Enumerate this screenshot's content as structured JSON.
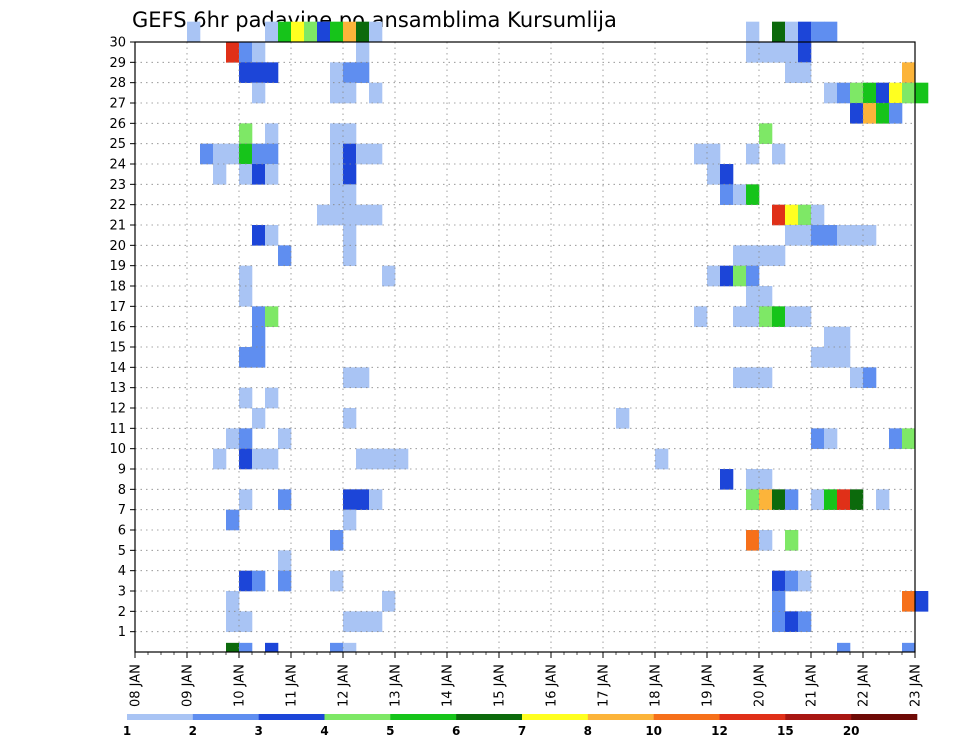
{
  "chart_data": {
    "type": "heatmap",
    "title": "GEFS 6hr padavine po ansamblima Kursumlija",
    "xlabel": "",
    "ylabel": "",
    "x_tick_labels": [
      "08 JAN",
      "09 JAN",
      "10 JAN",
      "11 JAN",
      "12 JAN",
      "13 JAN",
      "14 JAN",
      "15 JAN",
      "16 JAN",
      "17 JAN",
      "18 JAN",
      "19 JAN",
      "20 JAN",
      "21 JAN",
      "22 JAN",
      "23 JAN"
    ],
    "x_range_days": [
      "08 JAN",
      "23 JAN"
    ],
    "y_tick_labels": [
      "1",
      "2",
      "3",
      "4",
      "5",
      "6",
      "7",
      "8",
      "9",
      "10",
      "11",
      "12",
      "13",
      "14",
      "15",
      "16",
      "17",
      "18",
      "19",
      "20",
      "21",
      "22",
      "23",
      "24",
      "25",
      "26",
      "27",
      "28",
      "29",
      "30"
    ],
    "y_range": [
      0,
      30
    ],
    "grid": true,
    "colorbar": {
      "position": "bottom",
      "levels": [
        "1",
        "2",
        "3",
        "4",
        "5",
        "6",
        "7",
        "8",
        "10",
        "12",
        "15",
        "20"
      ],
      "colors": [
        "#a9c4f4",
        "#5f8ef0",
        "#1c45d8",
        "#7ee866",
        "#16c41a",
        "#0c6a0c",
        "#ffff20",
        "#fcb43a",
        "#f6701a",
        "#e03018",
        "#a81612",
        "#6e0a06"
      ]
    },
    "values_description": "columns = 6-hour steps starting 08 JAN 00Z; rows = ensemble member; value = color class index (1..12)",
    "cells": [
      [
        30,
        4,
        1
      ],
      [
        30,
        10,
        1
      ],
      [
        30,
        11,
        5
      ],
      [
        30,
        12,
        7
      ],
      [
        30,
        13,
        4
      ],
      [
        30,
        14,
        3
      ],
      [
        30,
        15,
        5
      ],
      [
        30,
        16,
        8
      ],
      [
        30,
        17,
        6
      ],
      [
        30,
        18,
        1
      ],
      [
        30,
        47,
        1
      ],
      [
        30,
        49,
        6
      ],
      [
        30,
        50,
        1
      ],
      [
        30,
        51,
        3
      ],
      [
        30,
        52,
        2
      ],
      [
        30,
        53,
        2
      ],
      [
        29,
        7,
        10
      ],
      [
        29,
        8,
        2
      ],
      [
        29,
        9,
        1
      ],
      [
        29,
        17,
        1
      ],
      [
        29,
        47,
        1
      ],
      [
        29,
        48,
        1
      ],
      [
        29,
        49,
        1
      ],
      [
        29,
        50,
        1
      ],
      [
        29,
        51,
        3
      ],
      [
        28,
        8,
        3
      ],
      [
        28,
        9,
        3
      ],
      [
        28,
        10,
        3
      ],
      [
        28,
        15,
        1
      ],
      [
        28,
        16,
        2
      ],
      [
        28,
        17,
        2
      ],
      [
        28,
        50,
        1
      ],
      [
        28,
        51,
        1
      ],
      [
        28,
        59,
        8
      ],
      [
        27,
        9,
        1
      ],
      [
        27,
        15,
        1
      ],
      [
        27,
        16,
        1
      ],
      [
        27,
        18,
        1
      ],
      [
        27,
        53,
        1
      ],
      [
        27,
        54,
        2
      ],
      [
        27,
        55,
        4
      ],
      [
        27,
        56,
        5
      ],
      [
        27,
        57,
        3
      ],
      [
        27,
        58,
        7
      ],
      [
        27,
        59,
        4
      ],
      [
        27,
        60,
        5
      ],
      [
        26,
        55,
        3
      ],
      [
        26,
        56,
        8
      ],
      [
        26,
        57,
        5
      ],
      [
        26,
        58,
        2
      ],
      [
        25,
        8,
        4
      ],
      [
        25,
        10,
        1
      ],
      [
        25,
        15,
        1
      ],
      [
        25,
        16,
        1
      ],
      [
        25,
        48,
        4
      ],
      [
        24,
        5,
        2
      ],
      [
        24,
        6,
        1
      ],
      [
        24,
        7,
        1
      ],
      [
        24,
        8,
        5
      ],
      [
        24,
        9,
        2
      ],
      [
        24,
        10,
        2
      ],
      [
        24,
        15,
        1
      ],
      [
        24,
        16,
        3
      ],
      [
        24,
        17,
        1
      ],
      [
        24,
        18,
        1
      ],
      [
        24,
        43,
        1
      ],
      [
        24,
        44,
        1
      ],
      [
        24,
        47,
        1
      ],
      [
        24,
        49,
        1
      ],
      [
        23,
        6,
        1
      ],
      [
        23,
        8,
        1
      ],
      [
        23,
        9,
        3
      ],
      [
        23,
        10,
        1
      ],
      [
        23,
        15,
        1
      ],
      [
        23,
        16,
        3
      ],
      [
        23,
        44,
        1
      ],
      [
        23,
        45,
        3
      ],
      [
        22,
        15,
        1
      ],
      [
        22,
        16,
        1
      ],
      [
        22,
        45,
        2
      ],
      [
        22,
        46,
        1
      ],
      [
        22,
        47,
        5
      ],
      [
        21,
        14,
        1
      ],
      [
        21,
        15,
        1
      ],
      [
        21,
        16,
        1
      ],
      [
        21,
        17,
        1
      ],
      [
        21,
        18,
        1
      ],
      [
        21,
        49,
        10
      ],
      [
        21,
        50,
        7
      ],
      [
        21,
        51,
        4
      ],
      [
        21,
        52,
        1
      ],
      [
        20,
        9,
        3
      ],
      [
        20,
        10,
        1
      ],
      [
        20,
        16,
        1
      ],
      [
        20,
        50,
        1
      ],
      [
        20,
        51,
        1
      ],
      [
        20,
        52,
        2
      ],
      [
        20,
        53,
        2
      ],
      [
        20,
        54,
        1
      ],
      [
        20,
        55,
        1
      ],
      [
        20,
        56,
        1
      ],
      [
        19,
        11,
        2
      ],
      [
        19,
        16,
        1
      ],
      [
        19,
        46,
        1
      ],
      [
        19,
        47,
        1
      ],
      [
        19,
        48,
        1
      ],
      [
        19,
        49,
        1
      ],
      [
        18,
        8,
        1
      ],
      [
        18,
        19,
        1
      ],
      [
        18,
        44,
        1
      ],
      [
        18,
        45,
        3
      ],
      [
        18,
        46,
        4
      ],
      [
        18,
        47,
        2
      ],
      [
        17,
        8,
        1
      ],
      [
        17,
        47,
        1
      ],
      [
        17,
        48,
        1
      ],
      [
        16,
        9,
        2
      ],
      [
        16,
        10,
        4
      ],
      [
        16,
        43,
        1
      ],
      [
        16,
        46,
        1
      ],
      [
        16,
        47,
        1
      ],
      [
        16,
        48,
        4
      ],
      [
        16,
        49,
        5
      ],
      [
        16,
        50,
        1
      ],
      [
        16,
        51,
        1
      ],
      [
        15,
        9,
        2
      ],
      [
        15,
        53,
        1
      ],
      [
        15,
        54,
        1
      ],
      [
        14,
        8,
        2
      ],
      [
        14,
        9,
        2
      ],
      [
        14,
        52,
        1
      ],
      [
        14,
        53,
        1
      ],
      [
        14,
        54,
        1
      ],
      [
        13,
        16,
        1
      ],
      [
        13,
        17,
        1
      ],
      [
        13,
        46,
        1
      ],
      [
        13,
        47,
        1
      ],
      [
        13,
        48,
        1
      ],
      [
        13,
        55,
        1
      ],
      [
        13,
        56,
        2
      ],
      [
        12,
        8,
        1
      ],
      [
        12,
        10,
        1
      ],
      [
        11,
        9,
        1
      ],
      [
        11,
        16,
        1
      ],
      [
        11,
        37,
        1
      ],
      [
        10,
        7,
        1
      ],
      [
        10,
        8,
        2
      ],
      [
        10,
        11,
        1
      ],
      [
        10,
        52,
        2
      ],
      [
        10,
        53,
        1
      ],
      [
        10,
        58,
        2
      ],
      [
        10,
        59,
        4
      ],
      [
        9,
        6,
        1
      ],
      [
        9,
        8,
        3
      ],
      [
        9,
        9,
        1
      ],
      [
        9,
        10,
        1
      ],
      [
        9,
        17,
        1
      ],
      [
        9,
        18,
        1
      ],
      [
        9,
        19,
        1
      ],
      [
        9,
        20,
        1
      ],
      [
        9,
        40,
        1
      ],
      [
        8,
        45,
        3
      ],
      [
        8,
        47,
        1
      ],
      [
        8,
        48,
        1
      ],
      [
        7,
        8,
        1
      ],
      [
        7,
        11,
        2
      ],
      [
        7,
        16,
        3
      ],
      [
        7,
        17,
        3
      ],
      [
        7,
        18,
        1
      ],
      [
        7,
        47,
        4
      ],
      [
        7,
        48,
        8
      ],
      [
        7,
        49,
        6
      ],
      [
        7,
        50,
        2
      ],
      [
        7,
        52,
        1
      ],
      [
        7,
        53,
        5
      ],
      [
        7,
        54,
        10
      ],
      [
        7,
        55,
        6
      ],
      [
        7,
        57,
        1
      ],
      [
        6,
        7,
        2
      ],
      [
        6,
        16,
        1
      ],
      [
        5,
        15,
        2
      ],
      [
        5,
        47,
        9
      ],
      [
        5,
        48,
        1
      ],
      [
        5,
        50,
        4
      ],
      [
        4,
        11,
        1
      ],
      [
        3,
        8,
        3
      ],
      [
        3,
        9,
        2
      ],
      [
        3,
        11,
        2
      ],
      [
        3,
        15,
        1
      ],
      [
        3,
        49,
        3
      ],
      [
        3,
        50,
        2
      ],
      [
        3,
        51,
        1
      ],
      [
        2,
        7,
        1
      ],
      [
        2,
        19,
        1
      ],
      [
        2,
        49,
        2
      ],
      [
        2,
        59,
        9
      ],
      [
        2,
        60,
        3
      ],
      [
        1,
        7,
        1
      ],
      [
        1,
        8,
        1
      ],
      [
        1,
        16,
        1
      ],
      [
        1,
        17,
        1
      ],
      [
        1,
        18,
        1
      ],
      [
        1,
        49,
        2
      ],
      [
        1,
        50,
        3
      ],
      [
        1,
        51,
        2
      ],
      [
        0,
        7,
        6
      ],
      [
        0,
        8,
        2
      ],
      [
        0,
        10,
        3
      ],
      [
        0,
        15,
        2
      ],
      [
        0,
        16,
        1
      ],
      [
        0,
        54,
        2
      ],
      [
        0,
        59,
        2
      ]
    ]
  }
}
